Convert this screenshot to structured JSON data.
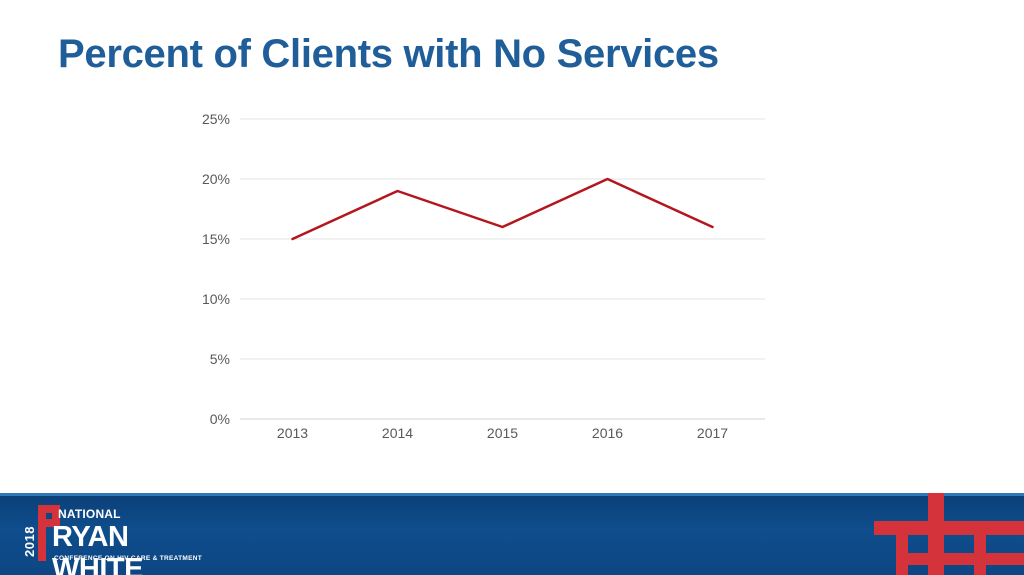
{
  "slide": {
    "title": "Percent of Clients with No Services"
  },
  "chart_data": {
    "type": "line",
    "title": "",
    "xlabel": "",
    "ylabel": "",
    "categories": [
      "2013",
      "2014",
      "2015",
      "2016",
      "2017"
    ],
    "series": [
      {
        "values": [
          15,
          19,
          16,
          20,
          16
        ],
        "color": "#b3161d"
      }
    ],
    "ylim": [
      0,
      25
    ],
    "yticks": [
      0,
      5,
      10,
      15,
      20,
      25
    ],
    "ytick_labels": [
      "0%",
      "5%",
      "10%",
      "15%",
      "20%",
      "25%"
    ],
    "grid": true,
    "legend": "none"
  },
  "footer": {
    "year": "2018",
    "national": "NATIONAL",
    "name": "RYAN WHITE",
    "tagline": "CONFERENCE ON HIV CARE & TREATMENT",
    "colors": {
      "band": "#0f4d8c",
      "accent": "#d5333b"
    }
  },
  "icons": {
    "logo_mark": "red-cross-logo-icon",
    "decoration": "red-cross-pattern-icon"
  }
}
